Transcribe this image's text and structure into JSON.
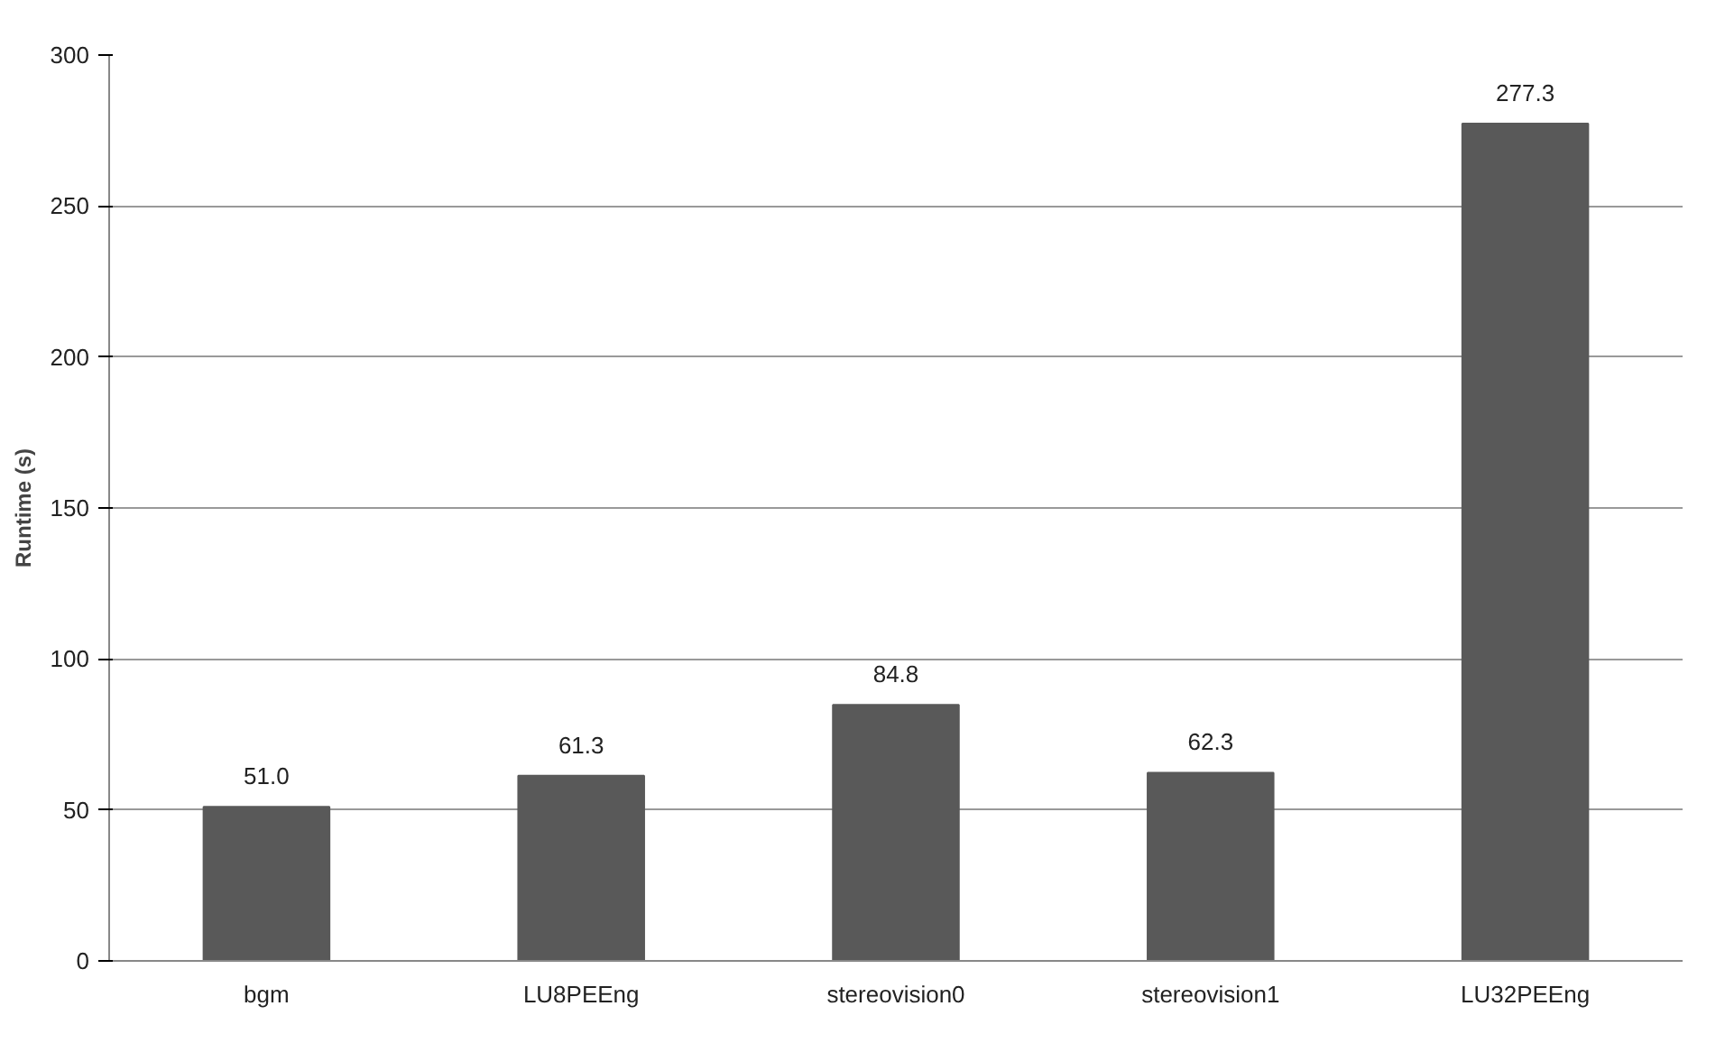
{
  "chart_data": {
    "type": "bar",
    "ylabel": "Runtime (s)",
    "categories": [
      "bgm",
      "LU8PEEng",
      "stereovision0",
      "stereovision1",
      "LU32PEEng"
    ],
    "values": [
      51.0,
      61.3,
      84.8,
      62.3,
      277.3
    ],
    "color": "#595959",
    "ylim": [
      0,
      300
    ],
    "yticks": [
      0,
      50,
      100,
      150,
      200,
      250,
      300
    ],
    "value_labels": [
      "51.0",
      "61.3",
      "84.8",
      "62.3",
      "277.3"
    ],
    "grid": "y"
  }
}
